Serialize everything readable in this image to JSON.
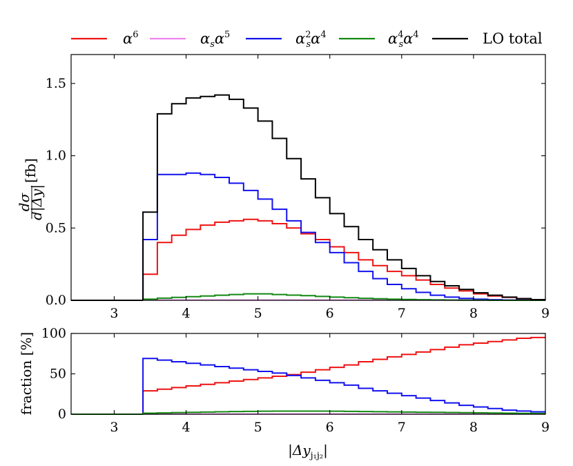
{
  "legend": [
    {
      "key": "alpha6",
      "label": "α⁶",
      "color": "#ee1111"
    },
    {
      "key": "as_alpha5",
      "label": "αsα⁵",
      "color": "#ee82ee"
    },
    {
      "key": "as2_alpha4",
      "label": "αs²α⁴",
      "color": "#1111ee"
    },
    {
      "key": "as4_alpha4",
      "label": "αs⁴α⁴",
      "color": "#118811"
    },
    {
      "key": "lo_total",
      "label": "LO total",
      "color": "#000000"
    }
  ],
  "chart_data": [
    {
      "type": "step",
      "panel": "main",
      "title": "",
      "xlabel": "",
      "ylabel": "dσ/d|Δy| [fb]",
      "ylabel_num": "dσ",
      "ylabel_den": "d|Δy|",
      "ylabel_unit": "[fb]",
      "xlim": [
        2.4,
        9.0
      ],
      "ylim": [
        0.0,
        1.7
      ],
      "xticks": [
        3,
        4,
        5,
        6,
        7,
        8,
        9
      ],
      "xtick_labels": [
        "3",
        "4",
        "5",
        "6",
        "7",
        "8",
        "9"
      ],
      "yticks": [
        0.0,
        0.5,
        1.0,
        1.5
      ],
      "ytick_labels": [
        "0.0",
        "0.5",
        "1.0",
        "1.5"
      ],
      "bin_edges": [
        3.4,
        3.6,
        3.8,
        4.0,
        4.2,
        4.4,
        4.6,
        4.8,
        5.0,
        5.2,
        5.4,
        5.6,
        5.8,
        6.0,
        6.2,
        6.4,
        6.6,
        6.8,
        7.0,
        7.2,
        7.4,
        7.6,
        7.8,
        8.0,
        8.2,
        8.4,
        8.6,
        8.8,
        9.0
      ],
      "series": [
        {
          "name": "α⁶",
          "key": "alpha6",
          "values": [
            0.18,
            0.4,
            0.45,
            0.49,
            0.52,
            0.54,
            0.55,
            0.56,
            0.55,
            0.53,
            0.5,
            0.46,
            0.42,
            0.37,
            0.33,
            0.28,
            0.24,
            0.2,
            0.17,
            0.14,
            0.11,
            0.085,
            0.065,
            0.045,
            0.03,
            0.02,
            0.01,
            0.005
          ]
        },
        {
          "name": "αsα⁵",
          "key": "as_alpha5",
          "values": [
            0.002,
            0.002,
            0.002,
            0.002,
            0.002,
            0.002,
            0.002,
            0.002,
            0.002,
            0.002,
            0.002,
            0.002,
            0.002,
            0.002,
            0.002,
            0.002,
            0.002,
            0.002,
            0.001,
            0.001,
            0.001,
            0.001,
            0.001,
            0.0,
            0.0,
            0.0,
            0.0,
            0.0
          ]
        },
        {
          "name": "αs²α⁴",
          "key": "as2_alpha4",
          "values": [
            0.42,
            0.87,
            0.87,
            0.88,
            0.87,
            0.85,
            0.81,
            0.76,
            0.7,
            0.63,
            0.55,
            0.47,
            0.4,
            0.33,
            0.26,
            0.2,
            0.15,
            0.11,
            0.08,
            0.055,
            0.035,
            0.022,
            0.013,
            0.008,
            0.004,
            0.002,
            0.001,
            0.0
          ]
        },
        {
          "name": "αs⁴α⁴",
          "key": "as4_alpha4",
          "values": [
            0.008,
            0.015,
            0.02,
            0.025,
            0.03,
            0.035,
            0.04,
            0.045,
            0.045,
            0.04,
            0.036,
            0.032,
            0.027,
            0.022,
            0.018,
            0.014,
            0.011,
            0.008,
            0.006,
            0.004,
            0.003,
            0.002,
            0.001,
            0.001,
            0.0,
            0.0,
            0.0,
            0.0
          ]
        },
        {
          "name": "LO total",
          "key": "lo_total",
          "values": [
            0.61,
            1.29,
            1.36,
            1.4,
            1.41,
            1.42,
            1.39,
            1.33,
            1.24,
            1.12,
            0.98,
            0.84,
            0.71,
            0.6,
            0.51,
            0.42,
            0.35,
            0.28,
            0.22,
            0.17,
            0.13,
            0.1,
            0.075,
            0.052,
            0.035,
            0.022,
            0.012,
            0.005
          ]
        }
      ]
    },
    {
      "type": "step",
      "panel": "ratio",
      "title": "",
      "xlabel": "|Δyj1j2|",
      "xlabel_main": "|Δy",
      "xlabel_sub": "j₁j₂",
      "xlabel_end": "|",
      "ylabel": "fraction [%]",
      "xlim": [
        2.4,
        9.0
      ],
      "ylim": [
        0,
        100
      ],
      "xticks": [
        3,
        4,
        5,
        6,
        7,
        8,
        9
      ],
      "xtick_labels": [
        "3",
        "4",
        "5",
        "6",
        "7",
        "8",
        "9"
      ],
      "yticks": [
        0,
        50,
        100
      ],
      "ytick_labels": [
        "0",
        "50",
        "100"
      ],
      "bin_edges": [
        3.4,
        3.6,
        3.8,
        4.0,
        4.2,
        4.4,
        4.6,
        4.8,
        5.0,
        5.2,
        5.4,
        5.6,
        5.8,
        6.0,
        6.2,
        6.4,
        6.6,
        6.8,
        7.0,
        7.2,
        7.4,
        7.6,
        7.8,
        8.0,
        8.2,
        8.4,
        8.6,
        8.8,
        9.0
      ],
      "series": [
        {
          "name": "α⁶",
          "key": "alpha6",
          "values": [
            29,
            31,
            33,
            35,
            37,
            39,
            41,
            43,
            45,
            47,
            49,
            52,
            55,
            58,
            61,
            65,
            68,
            71,
            74,
            77,
            80,
            83,
            86,
            88,
            90,
            92,
            94,
            95
          ]
        },
        {
          "name": "αsα⁵",
          "key": "as_alpha5",
          "values": [
            0.2,
            0.2,
            0.2,
            0.2,
            0.2,
            0.2,
            0.2,
            0.2,
            0.2,
            0.2,
            0.2,
            0.2,
            0.2,
            0.2,
            0.2,
            0.2,
            0.2,
            0.2,
            0.2,
            0.2,
            0.2,
            0.2,
            0.2,
            0.2,
            0.2,
            0.2,
            0.2,
            0.2
          ]
        },
        {
          "name": "αs²α⁴",
          "key": "as2_alpha4",
          "values": [
            69,
            67,
            65,
            63,
            61,
            59,
            57,
            55,
            53,
            51,
            48,
            45,
            42,
            39,
            36,
            32,
            29,
            26,
            23,
            20,
            17,
            14,
            11,
            9,
            7,
            5,
            4,
            3
          ]
        },
        {
          "name": "αs⁴α⁴",
          "key": "as4_alpha4",
          "values": [
            1.3,
            1.6,
            2.0,
            2.3,
            2.7,
            3.0,
            3.3,
            3.5,
            3.7,
            3.8,
            3.9,
            3.9,
            3.8,
            3.7,
            3.5,
            3.3,
            3.1,
            2.9,
            2.7,
            2.5,
            2.3,
            2.1,
            1.9,
            1.7,
            1.5,
            1.3,
            1.1,
            1.0
          ]
        }
      ]
    }
  ]
}
